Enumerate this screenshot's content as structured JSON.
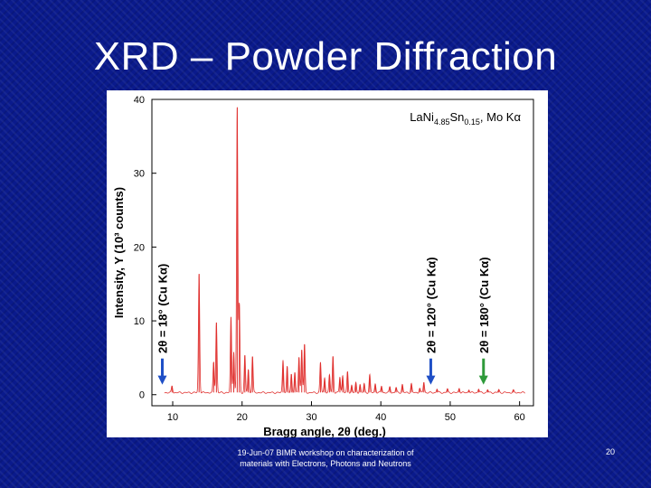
{
  "slide": {
    "title": "XRD – Powder Diffraction",
    "footer": "19-Jun-07 BIMR workshop on characterization of materials with Electrons, Photons and Neutrons",
    "page_number": "20"
  },
  "chart_data": {
    "type": "line",
    "xlabel": "Bragg angle, 2θ (deg.)",
    "ylabel": "Intensity, Y (10³ counts)",
    "xlim": [
      7,
      62
    ],
    "ylim": [
      -1.5,
      40
    ],
    "xticks": [
      10,
      20,
      30,
      40,
      50,
      60
    ],
    "yticks": [
      0,
      10,
      20,
      30,
      40
    ],
    "grid": false,
    "line_color": "#e0312f",
    "sample_label": {
      "base": "LaNi",
      "sub1": "4.85",
      "mid": "Sn",
      "sub2": "0.15",
      "tail": ", Mo Kα"
    },
    "annotations": [
      {
        "text": "2θ = 18° (Cu Kα)",
        "x": 8.5,
        "arrow_color": "#1f4fc6"
      },
      {
        "text": "2θ = 120° (Cu Kα)",
        "x": 47.2,
        "arrow_color": "#1f4fc6"
      },
      {
        "text": "2θ = 180° (Cu Kα)",
        "x": 54.8,
        "arrow_color": "#2e9a3a"
      }
    ],
    "peaks": [
      {
        "x": 9.9,
        "y": 0.9
      },
      {
        "x": 13.8,
        "y": 16.1
      },
      {
        "x": 15.9,
        "y": 4.1
      },
      {
        "x": 16.3,
        "y": 9.5
      },
      {
        "x": 18.4,
        "y": 10.2
      },
      {
        "x": 18.8,
        "y": 5.5
      },
      {
        "x": 19.3,
        "y": 38.6
      },
      {
        "x": 19.6,
        "y": 12.0
      },
      {
        "x": 20.4,
        "y": 5.0
      },
      {
        "x": 20.9,
        "y": 3.1
      },
      {
        "x": 21.5,
        "y": 4.9
      },
      {
        "x": 25.9,
        "y": 4.4
      },
      {
        "x": 26.5,
        "y": 3.5
      },
      {
        "x": 27.1,
        "y": 2.5
      },
      {
        "x": 27.6,
        "y": 2.7
      },
      {
        "x": 28.2,
        "y": 4.8
      },
      {
        "x": 28.6,
        "y": 5.8
      },
      {
        "x": 29.0,
        "y": 6.5
      },
      {
        "x": 31.3,
        "y": 4.1
      },
      {
        "x": 31.9,
        "y": 2.0
      },
      {
        "x": 32.6,
        "y": 2.4
      },
      {
        "x": 33.1,
        "y": 4.9
      },
      {
        "x": 34.1,
        "y": 2.1
      },
      {
        "x": 34.5,
        "y": 2.3
      },
      {
        "x": 35.2,
        "y": 2.8
      },
      {
        "x": 35.8,
        "y": 1.0
      },
      {
        "x": 36.4,
        "y": 1.3
      },
      {
        "x": 37.0,
        "y": 1.1
      },
      {
        "x": 37.6,
        "y": 1.2
      },
      {
        "x": 38.4,
        "y": 2.4
      },
      {
        "x": 39.2,
        "y": 1.2
      },
      {
        "x": 40.1,
        "y": 0.9
      },
      {
        "x": 41.3,
        "y": 0.8
      },
      {
        "x": 42.2,
        "y": 0.7
      },
      {
        "x": 43.1,
        "y": 1.1
      },
      {
        "x": 44.4,
        "y": 1.2
      },
      {
        "x": 45.6,
        "y": 0.6
      },
      {
        "x": 46.2,
        "y": 1.4
      },
      {
        "x": 48.1,
        "y": 0.5
      },
      {
        "x": 49.6,
        "y": 0.5
      },
      {
        "x": 51.3,
        "y": 0.6
      },
      {
        "x": 52.7,
        "y": 0.4
      },
      {
        "x": 54.1,
        "y": 0.5
      },
      {
        "x": 55.4,
        "y": 0.4
      },
      {
        "x": 57.0,
        "y": 0.4
      },
      {
        "x": 59.1,
        "y": 0.3
      }
    ]
  }
}
